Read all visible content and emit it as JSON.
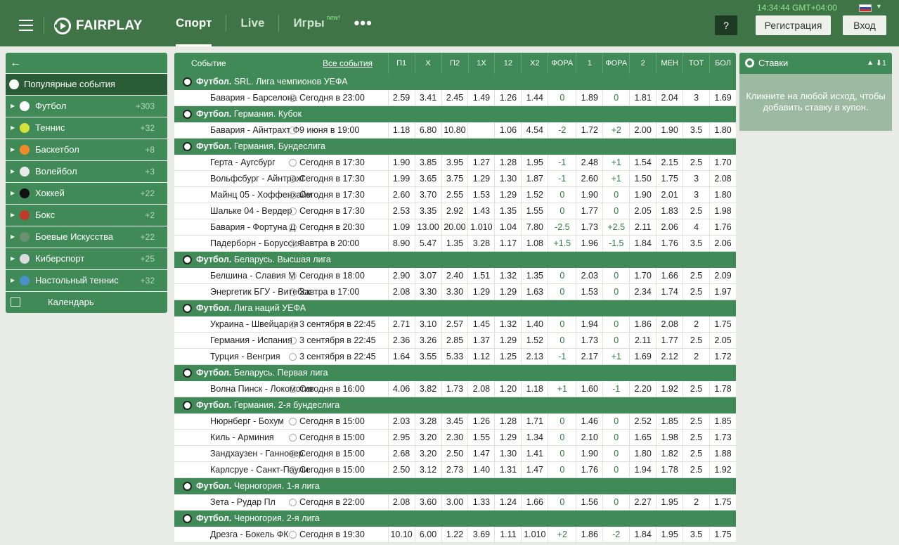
{
  "header": {
    "logo_text": "FAIRPLAY",
    "nav": [
      {
        "label": "Спорт",
        "active": true
      },
      {
        "label": "Live",
        "active": false
      },
      {
        "label": "Игры",
        "badge": "new!",
        "active": false
      }
    ],
    "more": "•••",
    "clock": "14:34:44 GMT+04:00",
    "help": "?",
    "register": "Регистрация",
    "login": "Вход"
  },
  "sidebar": {
    "back": "←",
    "popular": "Популярные события",
    "items": [
      {
        "label": "Футбол",
        "count": "+303",
        "icon": "football-icon",
        "color": "#ffffff"
      },
      {
        "label": "Теннис",
        "count": "+32",
        "icon": "tennis-icon",
        "color": "#d6e23a"
      },
      {
        "label": "Баскетбол",
        "count": "+8",
        "icon": "basketball-icon",
        "color": "#f08a2a"
      },
      {
        "label": "Волейбол",
        "count": "+3",
        "icon": "volleyball-icon",
        "color": "#e9e9e9"
      },
      {
        "label": "Хоккей",
        "count": "+22",
        "icon": "hockey-puck-icon",
        "color": "#111111"
      },
      {
        "label": "Бокс",
        "count": "+2",
        "icon": "boxing-glove-icon",
        "color": "#c0392b"
      },
      {
        "label": "Боевые Искусства",
        "count": "+22",
        "icon": "martial-arts-icon",
        "color": "#6b8f6f"
      },
      {
        "label": "Киберспорт",
        "count": "+25",
        "icon": "gamepad-icon",
        "color": "#dcdcdc"
      },
      {
        "label": "Настольный теннис",
        "count": "+32",
        "icon": "table-tennis-icon",
        "color": "#4a90c9"
      }
    ],
    "calendar": "Календарь"
  },
  "table": {
    "event_label": "Событие",
    "all_events": "Все события",
    "columns": [
      "П1",
      "Х",
      "П2",
      "1Х",
      "12",
      "Х2",
      "ФОРА",
      "1",
      "ФОРА",
      "2",
      "МЕН",
      "ТОТ",
      "БОЛ"
    ],
    "groups": [
      {
        "sport": "Футбол.",
        "league": "SRL. Лига чемпионов УЕФА",
        "rows": [
          {
            "teams": "Бавария - Барселона",
            "time": "Сегодня в 23:00",
            "odds": [
              "2.59",
              "3.41",
              "2.45",
              "1.49",
              "1.26",
              "1.44",
              "0",
              "1.89",
              "0",
              "1.81",
              "2.04",
              "3",
              "1.69"
            ]
          }
        ]
      },
      {
        "sport": "Футбол.",
        "league": "Германия. Кубок",
        "rows": [
          {
            "teams": "Бавария - Айнтрахт Ф",
            "time": "9 июня в 19:00",
            "odds": [
              "1.18",
              "6.80",
              "10.80",
              "",
              "1.06",
              "4.54",
              "-2",
              "1.72",
              "+2",
              "2.00",
              "1.90",
              "3.5",
              "1.80"
            ]
          }
        ]
      },
      {
        "sport": "Футбол.",
        "league": "Германия. Бундеслига",
        "rows": [
          {
            "teams": "Герта - Аугсбург",
            "time": "Сегодня в 17:30",
            "odds": [
              "1.90",
              "3.85",
              "3.95",
              "1.27",
              "1.28",
              "1.95",
              "-1",
              "2.48",
              "+1",
              "1.54",
              "2.15",
              "2.5",
              "1.70"
            ]
          },
          {
            "teams": "Вольфсбург - Айнтрахт",
            "time": "Сегодня в 17:30",
            "odds": [
              "1.99",
              "3.65",
              "3.75",
              "1.29",
              "1.30",
              "1.87",
              "-1",
              "2.60",
              "+1",
              "1.50",
              "1.75",
              "3",
              "2.08"
            ]
          },
          {
            "teams": "Майнц 05 - Хоффенхайм",
            "time": "Сегодня в 17:30",
            "odds": [
              "2.60",
              "3.70",
              "2.55",
              "1.53",
              "1.29",
              "1.52",
              "0",
              "1.90",
              "0",
              "1.90",
              "2.01",
              "3",
              "1.80"
            ]
          },
          {
            "teams": "Шальке 04 - Вердер",
            "time": "Сегодня в 17:30",
            "odds": [
              "2.53",
              "3.35",
              "2.92",
              "1.43",
              "1.35",
              "1.55",
              "0",
              "1.77",
              "0",
              "2.05",
              "1.83",
              "2.5",
              "1.98"
            ]
          },
          {
            "teams": "Бавария - Фортуна Д",
            "time": "Сегодня в 20:30",
            "odds": [
              "1.09",
              "13.00",
              "20.00",
              "1.010",
              "1.04",
              "7.80",
              "-2.5",
              "1.73",
              "+2.5",
              "2.11",
              "2.06",
              "4",
              "1.76"
            ]
          },
          {
            "teams": "Падерборн - Боруссия",
            "time": "Завтра в 20:00",
            "odds": [
              "8.90",
              "5.47",
              "1.35",
              "3.28",
              "1.17",
              "1.08",
              "+1.5",
              "1.96",
              "-1.5",
              "1.84",
              "1.76",
              "3.5",
              "2.06"
            ]
          }
        ]
      },
      {
        "sport": "Футбол.",
        "league": "Беларусь. Высшая лига",
        "rows": [
          {
            "teams": "Белшина - Славия М",
            "time": "Сегодня в 18:00",
            "odds": [
              "2.90",
              "3.07",
              "2.40",
              "1.51",
              "1.32",
              "1.35",
              "0",
              "2.03",
              "0",
              "1.70",
              "1.66",
              "2.5",
              "2.09"
            ]
          },
          {
            "teams": "Энергетик БГУ - Витебск",
            "time": "Завтра в 17:00",
            "odds": [
              "2.08",
              "3.30",
              "3.30",
              "1.29",
              "1.29",
              "1.63",
              "0",
              "1.53",
              "0",
              "2.34",
              "1.74",
              "2.5",
              "1.97"
            ]
          }
        ]
      },
      {
        "sport": "Футбол.",
        "league": "Лига наций УЕФА",
        "rows": [
          {
            "teams": "Украина - Швейцария",
            "time": "3 сентября в 22:45",
            "odds": [
              "2.71",
              "3.10",
              "2.57",
              "1.45",
              "1.32",
              "1.40",
              "0",
              "1.94",
              "0",
              "1.86",
              "2.08",
              "2",
              "1.75"
            ]
          },
          {
            "teams": "Германия - Испания",
            "time": "3 сентября в 22:45",
            "odds": [
              "2.36",
              "3.26",
              "2.85",
              "1.37",
              "1.29",
              "1.52",
              "0",
              "1.73",
              "0",
              "2.11",
              "1.77",
              "2.5",
              "2.05"
            ]
          },
          {
            "teams": "Турция - Венгрия",
            "time": "3 сентября в 22:45",
            "odds": [
              "1.64",
              "3.55",
              "5.33",
              "1.12",
              "1.25",
              "2.13",
              "-1",
              "2.17",
              "+1",
              "1.69",
              "2.12",
              "2",
              "1.72"
            ]
          }
        ]
      },
      {
        "sport": "Футбол.",
        "league": "Беларусь. Первая лига",
        "rows": [
          {
            "teams": "Волна Пинск - Локомотив",
            "time": "Сегодня в 16:00",
            "odds": [
              "4.06",
              "3.82",
              "1.73",
              "2.08",
              "1.20",
              "1.18",
              "+1",
              "1.60",
              "-1",
              "2.20",
              "1.92",
              "2.5",
              "1.78"
            ]
          }
        ]
      },
      {
        "sport": "Футбол.",
        "league": "Германия. 2-я бундеслига",
        "rows": [
          {
            "teams": "Нюрнберг - Бохум",
            "time": "Сегодня в 15:00",
            "odds": [
              "2.03",
              "3.28",
              "3.45",
              "1.26",
              "1.28",
              "1.71",
              "0",
              "1.46",
              "0",
              "2.52",
              "1.85",
              "2.5",
              "1.85"
            ]
          },
          {
            "teams": "Киль - Арминия",
            "time": "Сегодня в 15:00",
            "odds": [
              "2.95",
              "3.20",
              "2.30",
              "1.55",
              "1.29",
              "1.34",
              "0",
              "2.10",
              "0",
              "1.65",
              "1.98",
              "2.5",
              "1.73"
            ]
          },
          {
            "teams": "Зандхаузен - Ганновер",
            "time": "Сегодня в 15:00",
            "odds": [
              "2.68",
              "3.20",
              "2.50",
              "1.47",
              "1.30",
              "1.41",
              "0",
              "1.90",
              "0",
              "1.80",
              "1.82",
              "2.5",
              "1.88"
            ]
          },
          {
            "teams": "Карлсруе - Санкт-Паули",
            "time": "Сегодня в 15:00",
            "odds": [
              "2.50",
              "3.12",
              "2.73",
              "1.40",
              "1.31",
              "1.47",
              "0",
              "1.76",
              "0",
              "1.94",
              "1.78",
              "2.5",
              "1.92"
            ]
          }
        ]
      },
      {
        "sport": "Футбол.",
        "league": "Черногория. 1-я лига",
        "rows": [
          {
            "teams": "Зета - Рудар Пл",
            "time": "Сегодня в 22:00",
            "odds": [
              "2.08",
              "3.60",
              "3.00",
              "1.33",
              "1.24",
              "1.66",
              "0",
              "1.56",
              "0",
              "2.27",
              "1.95",
              "2",
              "1.75"
            ]
          }
        ]
      },
      {
        "sport": "Футбол.",
        "league": "Черногория. 2-я лига",
        "rows": [
          {
            "teams": "Дрезга - Бокель ФК",
            "time": "Сегодня в 19:30",
            "odds": [
              "10.10",
              "6.00",
              "1.22",
              "3.69",
              "1.11",
              "1.010",
              "+2",
              "1.86",
              "-2",
              "1.84",
              "1.95",
              "3.5",
              "1.75"
            ]
          }
        ]
      }
    ]
  },
  "slip": {
    "title": "Ставки",
    "count": "1",
    "hint": "Кликните на любой исход, чтобы добавить ставку в купон."
  }
}
